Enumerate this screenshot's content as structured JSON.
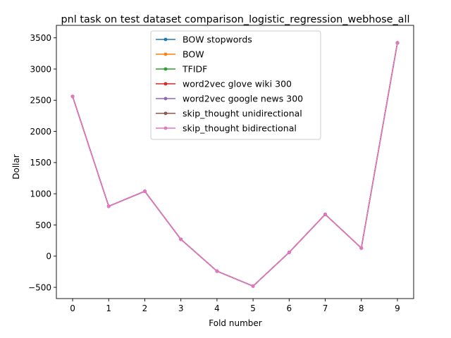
{
  "chart_data": {
    "type": "line",
    "title": "pnl task on test dataset comparison_logistic_regression_webhose_all",
    "xlabel": "Fold number",
    "ylabel": "Dollar",
    "x": [
      0,
      1,
      2,
      3,
      4,
      5,
      6,
      7,
      8,
      9
    ],
    "xlim": [
      -0.45,
      9.45
    ],
    "ylim": [
      -680,
      3700
    ],
    "xticks": [
      0,
      1,
      2,
      3,
      4,
      5,
      6,
      7,
      8,
      9
    ],
    "yticks": [
      -500,
      0,
      500,
      1000,
      1500,
      2000,
      2500,
      3000,
      3500
    ],
    "grid": false,
    "legend_position": "upper-center",
    "series": [
      {
        "name": "BOW stopwords",
        "color": "#1f77b4",
        "values": [
          2560,
          800,
          1040,
          270,
          -240,
          -480,
          60,
          670,
          130,
          3420
        ]
      },
      {
        "name": "BOW",
        "color": "#ff7f0e",
        "values": [
          2560,
          800,
          1040,
          270,
          -240,
          -480,
          60,
          670,
          130,
          3420
        ]
      },
      {
        "name": "TFIDF",
        "color": "#2ca02c",
        "values": [
          2560,
          800,
          1040,
          270,
          -240,
          -480,
          60,
          670,
          130,
          3420
        ]
      },
      {
        "name": "word2vec glove wiki 300",
        "color": "#d62728",
        "values": [
          2560,
          800,
          1040,
          270,
          -240,
          -480,
          60,
          670,
          130,
          3420
        ]
      },
      {
        "name": "word2vec google news 300",
        "color": "#9467bd",
        "values": [
          2560,
          800,
          1040,
          270,
          -240,
          -480,
          60,
          670,
          130,
          3420
        ]
      },
      {
        "name": "skip_thought unidirectional",
        "color": "#8c564b",
        "values": [
          2560,
          800,
          1040,
          270,
          -240,
          -480,
          60,
          670,
          130,
          3420
        ]
      },
      {
        "name": "skip_thought bidirectional",
        "color": "#e377c2",
        "values": [
          2560,
          800,
          1040,
          270,
          -240,
          -480,
          60,
          670,
          130,
          3420
        ]
      }
    ]
  }
}
